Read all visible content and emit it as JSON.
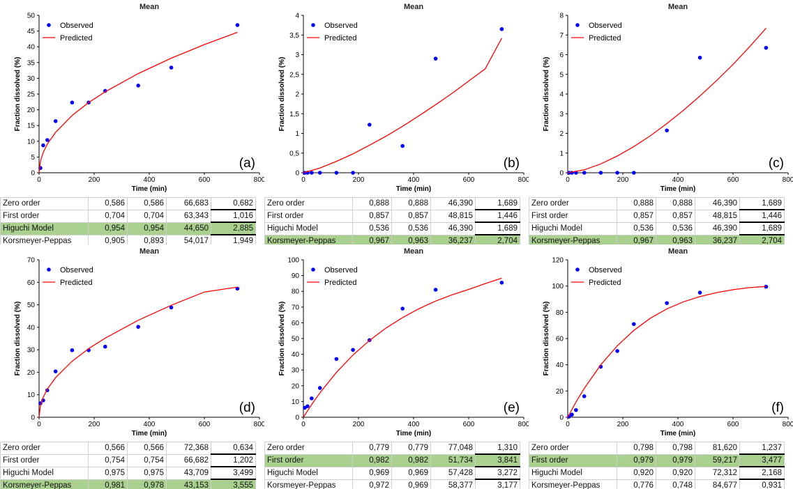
{
  "chart_data": [
    {
      "type": "scatter",
      "title": "Mean",
      "xlabel": "Time (min)",
      "ylabel": "Fraction dissolved (%)",
      "panel_label": "(a)",
      "xlim": [
        0,
        800
      ],
      "ylim": [
        0,
        50
      ],
      "xticks": [
        0,
        200,
        400,
        600,
        800
      ],
      "yticks": [
        0,
        5,
        10,
        15,
        20,
        25,
        30,
        35,
        40,
        45,
        50
      ],
      "series": [
        {
          "name": "Observed",
          "kind": "points",
          "color": "#0000ff",
          "x": [
            5,
            15,
            30,
            60,
            120,
            180,
            240,
            360,
            480,
            720
          ],
          "y": [
            1.5,
            8.7,
            10.4,
            16.4,
            22.3,
            22.3,
            26.0,
            27.7,
            33.4,
            46.9
          ]
        },
        {
          "name": "Predicted",
          "kind": "line",
          "color": "#ff0000",
          "x": [
            0,
            5,
            15,
            30,
            60,
            120,
            180,
            240,
            360,
            480,
            600,
            720
          ],
          "y": [
            0,
            3.7,
            6.4,
            9.1,
            12.8,
            18.2,
            22.3,
            25.7,
            31.5,
            36.4,
            40.7,
            44.6
          ]
        }
      ],
      "table": [
        {
          "model": "Zero order",
          "v1": "0,586",
          "v2": "0,586",
          "v3": "66,683",
          "v4": "0,682",
          "hl": false
        },
        {
          "model": "First order",
          "v1": "0,704",
          "v2": "0,704",
          "v3": "63,343",
          "v4": "1,016",
          "hl": false
        },
        {
          "model": "Higuchi Model",
          "v1": "0,954",
          "v2": "0,954",
          "v3": "44,650",
          "v4": "2,885",
          "hl": true
        },
        {
          "model": "Korsmeyer-Peppas",
          "v1": "0,905",
          "v2": "0,893",
          "v3": "54,017",
          "v4": "1,949",
          "hl": false
        }
      ]
    },
    {
      "type": "scatter",
      "title": "Mean",
      "xlabel": "Time (min)",
      "ylabel": "Fraction dissolved (%)",
      "panel_label": "(b)",
      "xlim": [
        0,
        800
      ],
      "ylim": [
        0,
        4
      ],
      "xticks": [
        0,
        200,
        400,
        600,
        800
      ],
      "yticks": [
        0,
        0.5,
        1,
        1.5,
        2,
        2.5,
        3,
        3.5,
        4
      ],
      "ytick_labels": [
        "0",
        "0,5",
        "1",
        "1,5",
        "2",
        "2,5",
        "3",
        "3,5",
        "4"
      ],
      "series": [
        {
          "name": "Observed",
          "kind": "points",
          "color": "#0000ff",
          "x": [
            5,
            15,
            30,
            60,
            120,
            180,
            240,
            360,
            480,
            720
          ],
          "y": [
            0,
            0,
            0,
            0,
            0,
            0,
            1.22,
            0.68,
            2.9,
            3.65
          ]
        },
        {
          "name": "Predicted",
          "kind": "line",
          "color": "#ff0000",
          "x": [
            0,
            30,
            60,
            120,
            180,
            240,
            300,
            360,
            420,
            480,
            540,
            600,
            660,
            720
          ],
          "y": [
            0,
            0.06,
            0.12,
            0.29,
            0.48,
            0.7,
            0.93,
            1.18,
            1.45,
            1.73,
            2.02,
            2.33,
            2.64,
            3.42
          ]
        }
      ],
      "table": [
        {
          "model": "Zero order",
          "v1": "0,888",
          "v2": "0,888",
          "v3": "46,390",
          "v4": "1,689",
          "hl": false
        },
        {
          "model": "First order",
          "v1": "0,857",
          "v2": "0,857",
          "v3": "48,815",
          "v4": "1,446",
          "hl": false
        },
        {
          "model": "Higuchi Model",
          "v1": "0,536",
          "v2": "0,536",
          "v3": "46,390",
          "v4": "1,689",
          "hl": false
        },
        {
          "model": "Korsmeyer-Peppas",
          "v1": "0,967",
          "v2": "0,963",
          "v3": "36,237",
          "v4": "2,704",
          "hl": true
        }
      ]
    },
    {
      "type": "scatter",
      "title": "Mean",
      "xlabel": "Time (min)",
      "ylabel": "Fraction dissolved (%)",
      "panel_label": "(c)",
      "xlim": [
        0,
        800
      ],
      "ylim": [
        0,
        8
      ],
      "xticks": [
        0,
        200,
        400,
        600,
        800
      ],
      "yticks": [
        0,
        1,
        2,
        3,
        4,
        5,
        6,
        7,
        8
      ],
      "series": [
        {
          "name": "Observed",
          "kind": "points",
          "color": "#0000ff",
          "x": [
            5,
            15,
            30,
            60,
            120,
            180,
            240,
            360,
            480,
            720
          ],
          "y": [
            0,
            0,
            0,
            0,
            0,
            0,
            0,
            2.15,
            5.85,
            6.35
          ]
        },
        {
          "name": "Predicted",
          "kind": "line",
          "color": "#ff0000",
          "x": [
            0,
            60,
            120,
            180,
            240,
            300,
            360,
            420,
            480,
            540,
            600,
            660,
            720
          ],
          "y": [
            0,
            0.15,
            0.45,
            0.85,
            1.33,
            1.88,
            2.5,
            3.17,
            3.9,
            4.68,
            5.5,
            6.4,
            7.35
          ]
        }
      ],
      "table": [
        {
          "model": "Zero order",
          "v1": "0,888",
          "v2": "0,888",
          "v3": "46,390",
          "v4": "1,689",
          "hl": false
        },
        {
          "model": "First order",
          "v1": "0,857",
          "v2": "0,857",
          "v3": "48,815",
          "v4": "1,446",
          "hl": false
        },
        {
          "model": "Higuchi Model",
          "v1": "0,536",
          "v2": "0,536",
          "v3": "46,390",
          "v4": "1,689",
          "hl": false
        },
        {
          "model": "Korsmeyer-Peppas",
          "v1": "0,967",
          "v2": "0,963",
          "v3": "36,237",
          "v4": "2,704",
          "hl": true
        }
      ]
    },
    {
      "type": "scatter",
      "title": "Mean",
      "xlabel": "Time (min)",
      "ylabel": "Fraction dissolved (%)",
      "panel_label": "(d)",
      "xlim": [
        0,
        800
      ],
      "ylim": [
        0,
        70
      ],
      "xticks": [
        0,
        200,
        400,
        600,
        800
      ],
      "yticks": [
        0,
        10,
        20,
        30,
        40,
        50,
        60,
        70
      ],
      "series": [
        {
          "name": "Observed",
          "kind": "points",
          "color": "#0000ff",
          "x": [
            5,
            15,
            30,
            60,
            120,
            180,
            240,
            360,
            480,
            720
          ],
          "y": [
            6.2,
            7.5,
            12.0,
            20.4,
            29.8,
            29.8,
            31.4,
            40.2,
            48.8,
            57.2
          ]
        },
        {
          "name": "Predicted",
          "kind": "line",
          "color": "#ff0000",
          "x": [
            0,
            5,
            15,
            30,
            60,
            120,
            180,
            240,
            360,
            480,
            600,
            720
          ],
          "y": [
            0,
            5.1,
            8.8,
            12.5,
            17.6,
            24.9,
            30.5,
            35.2,
            43.1,
            49.8,
            55.7,
            57.9
          ]
        }
      ],
      "table": [
        {
          "model": "Zero order",
          "v1": "0,566",
          "v2": "0,566",
          "v3": "72,368",
          "v4": "0,634",
          "hl": false
        },
        {
          "model": "First order",
          "v1": "0,754",
          "v2": "0,754",
          "v3": "66,682",
          "v4": "1,202",
          "hl": false
        },
        {
          "model": "Higuchi Model",
          "v1": "0,975",
          "v2": "0,975",
          "v3": "43,709",
          "v4": "3,499",
          "hl": false
        },
        {
          "model": "Korsmeyer-Peppas",
          "v1": "0,981",
          "v2": "0,978",
          "v3": "43,153",
          "v4": "3,555",
          "hl": true
        }
      ]
    },
    {
      "type": "scatter",
      "title": "Mean",
      "xlabel": "Time (min)",
      "ylabel": "Fraction dissolved (%)",
      "panel_label": "(e)",
      "xlim": [
        0,
        800
      ],
      "ylim": [
        0,
        100
      ],
      "xticks": [
        0,
        200,
        400,
        600,
        800
      ],
      "yticks": [
        0,
        10,
        20,
        30,
        40,
        50,
        60,
        70,
        80,
        90,
        100
      ],
      "series": [
        {
          "name": "Observed",
          "kind": "points",
          "color": "#0000ff",
          "x": [
            5,
            15,
            30,
            60,
            120,
            180,
            240,
            360,
            480,
            720
          ],
          "y": [
            6.0,
            7.0,
            12.0,
            18.6,
            37.0,
            42.8,
            49.0,
            69.0,
            81.0,
            85.5
          ]
        },
        {
          "name": "Predicted",
          "kind": "line",
          "color": "#ff0000",
          "x": [
            0,
            30,
            60,
            120,
            180,
            240,
            300,
            360,
            420,
            480,
            540,
            600,
            660,
            720
          ],
          "y": [
            0,
            8.0,
            15.5,
            28.5,
            39.5,
            48.8,
            56.7,
            63.3,
            69.0,
            73.8,
            77.8,
            81.2,
            84.9,
            88.3
          ]
        }
      ],
      "table": [
        {
          "model": "Zero order",
          "v1": "0,779",
          "v2": "0,779",
          "v3": "77,048",
          "v4": "1,310",
          "hl": false
        },
        {
          "model": "First order",
          "v1": "0,982",
          "v2": "0,982",
          "v3": "51,734",
          "v4": "3,841",
          "hl": true
        },
        {
          "model": "Higuchi Model",
          "v1": "0,969",
          "v2": "0,969",
          "v3": "57,428",
          "v4": "3,272",
          "hl": false
        },
        {
          "model": "Korsmeyer-Peppas",
          "v1": "0,972",
          "v2": "0,969",
          "v3": "58,377",
          "v4": "3,177",
          "hl": false
        }
      ]
    },
    {
      "type": "scatter",
      "title": "Mean",
      "xlabel": "Time (min)",
      "ylabel": "Fraction dissolved (%)",
      "panel_label": "(f)",
      "xlim": [
        0,
        800
      ],
      "ylim": [
        0,
        120
      ],
      "xticks": [
        0,
        200,
        400,
        600,
        800
      ],
      "yticks": [
        0,
        20,
        40,
        60,
        80,
        100,
        120
      ],
      "series": [
        {
          "name": "Observed",
          "kind": "points",
          "color": "#0000ff",
          "x": [
            5,
            15,
            30,
            60,
            120,
            180,
            240,
            360,
            480,
            720
          ],
          "y": [
            0.5,
            2.0,
            5.5,
            16.0,
            38.5,
            50.5,
            71.0,
            87.0,
            95.0,
            99.5
          ]
        },
        {
          "name": "Predicted",
          "kind": "line",
          "color": "#ff0000",
          "x": [
            0,
            30,
            60,
            120,
            180,
            240,
            300,
            360,
            420,
            480,
            540,
            600,
            660,
            720
          ],
          "y": [
            0,
            11.5,
            22.0,
            40.0,
            54.5,
            66.2,
            75.5,
            82.6,
            88.0,
            92.0,
            95.0,
            97.2,
            98.8,
            99.7
          ]
        }
      ],
      "table": [
        {
          "model": "Zero order",
          "v1": "0,798",
          "v2": "0,798",
          "v3": "81,620",
          "v4": "1,237",
          "hl": false
        },
        {
          "model": "First order",
          "v1": "0,979",
          "v2": "0,979",
          "v3": "59,217",
          "v4": "3,477",
          "hl": true
        },
        {
          "model": "Higuchi Model",
          "v1": "0,920",
          "v2": "0,920",
          "v3": "72,312",
          "v4": "2,168",
          "hl": false
        },
        {
          "model": "Korsmeyer-Peppas",
          "v1": "0,776",
          "v2": "0,748",
          "v3": "84,677",
          "v4": "0,931",
          "hl": false
        }
      ]
    }
  ]
}
